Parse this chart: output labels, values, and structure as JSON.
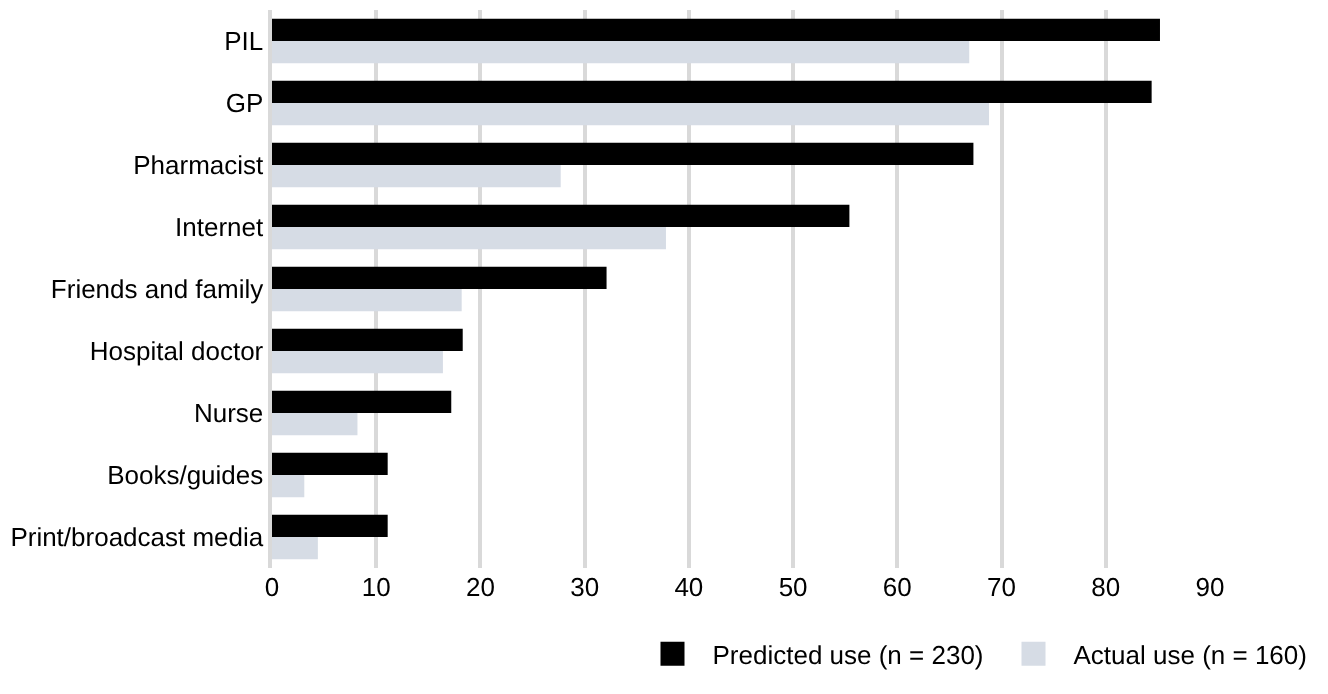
{
  "chart_data": {
    "type": "bar",
    "orientation": "horizontal",
    "categories": [
      "PIL",
      "GP",
      "Pharmacist",
      "Internet",
      "Friends and family",
      "Hospital doctor",
      "Nurse",
      "Books/guides",
      "Print/broadcast media"
    ],
    "series": [
      {
        "name": "Predicted use (n = 230)",
        "color": "#000000",
        "values": [
          85.2,
          84.4,
          67.3,
          55.4,
          32.1,
          18.3,
          17.2,
          11.1,
          11.1
        ]
      },
      {
        "name": "Actual use (n = 160)",
        "color": "#d6dce5",
        "values": [
          66.9,
          68.8,
          27.7,
          37.8,
          18.2,
          16.4,
          8.2,
          3.1,
          4.4
        ]
      }
    ],
    "xlim": [
      0,
      90
    ],
    "xticks": [
      0,
      10,
      20,
      30,
      40,
      50,
      60,
      70,
      80,
      90
    ],
    "grid": "x",
    "legend": "bottom"
  }
}
